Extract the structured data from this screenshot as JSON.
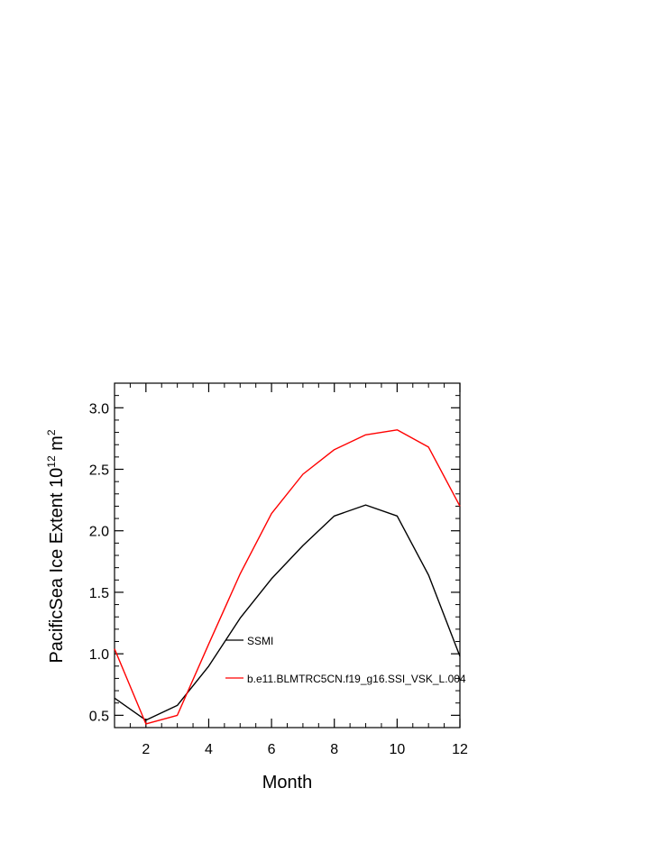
{
  "chart_data": {
    "type": "line",
    "xlabel": "Month",
    "ylabel": {
      "main": "PacificSea Ice Extent 10",
      "exponent1": "12",
      "unit": " m",
      "exponent2": "2"
    },
    "xlim": [
      1,
      12
    ],
    "ylim": [
      0.4,
      3.2
    ],
    "x_ticks": [
      2,
      4,
      6,
      8,
      10,
      12
    ],
    "y_ticks": [
      0.5,
      1.0,
      1.5,
      2.0,
      2.5,
      3.0
    ],
    "x_tick_labels": [
      "2",
      "4",
      "6",
      "8",
      "10",
      "12"
    ],
    "y_tick_labels": [
      "0.5",
      "1.0",
      "1.5",
      "2.0",
      "2.5",
      "3.0"
    ],
    "legend_position": "inside-center",
    "grid": false,
    "x": [
      1,
      2,
      3,
      4,
      5,
      6,
      7,
      8,
      9,
      10,
      11,
      12
    ],
    "series": [
      {
        "name": "SSMI",
        "color": "#000000",
        "values": [
          0.64,
          0.46,
          0.58,
          0.9,
          1.29,
          1.61,
          1.88,
          2.12,
          2.21,
          2.12,
          1.64,
          0.98
        ]
      },
      {
        "name": "b.e11.BLMTRC5CN.f19_g16.SSI_VSK_L.004",
        "color": "#ff0000",
        "values": [
          1.04,
          0.43,
          0.5,
          1.08,
          1.65,
          2.14,
          2.46,
          2.66,
          2.78,
          2.82,
          2.68,
          2.2
        ]
      }
    ]
  }
}
